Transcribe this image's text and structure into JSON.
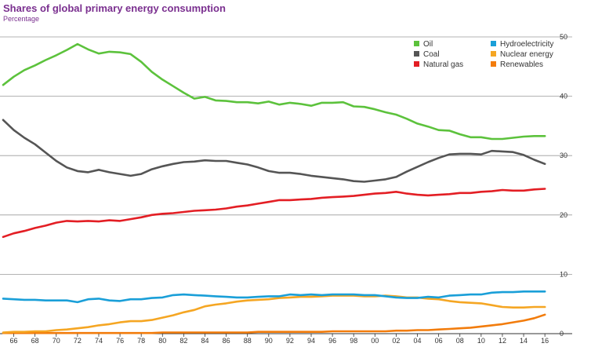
{
  "chart_data": {
    "type": "line",
    "title": "Shares of global primary energy consumption",
    "subtitle": "Percentage",
    "xlabel": "",
    "ylabel": "",
    "x": [
      1965,
      1966,
      1967,
      1968,
      1969,
      1970,
      1971,
      1972,
      1973,
      1974,
      1975,
      1976,
      1977,
      1978,
      1979,
      1980,
      1981,
      1982,
      1983,
      1984,
      1985,
      1986,
      1987,
      1988,
      1989,
      1990,
      1991,
      1992,
      1993,
      1994,
      1995,
      1996,
      1997,
      1998,
      1999,
      2000,
      2001,
      2002,
      2003,
      2004,
      2005,
      2006,
      2007,
      2008,
      2009,
      2010,
      2011,
      2012,
      2013,
      2014,
      2015,
      2016
    ],
    "x_tick_values": [
      1966,
      1968,
      1970,
      1972,
      1974,
      1976,
      1978,
      1980,
      1982,
      1984,
      1986,
      1988,
      1990,
      1992,
      1994,
      1996,
      1998,
      2000,
      2002,
      2004,
      2006,
      2008,
      2010,
      2012,
      2014,
      2016
    ],
    "x_tick_labels": [
      "66",
      "68",
      "70",
      "72",
      "74",
      "76",
      "78",
      "80",
      "82",
      "84",
      "86",
      "88",
      "90",
      "92",
      "94",
      "96",
      "98",
      "00",
      "02",
      "04",
      "06",
      "08",
      "10",
      "12",
      "14",
      "16"
    ],
    "xlim": [
      1965,
      2016.8
    ],
    "ylim": [
      0,
      50
    ],
    "y_ticks": [
      0,
      10,
      20,
      30,
      40,
      50
    ],
    "y_axis_position": "right",
    "grid": "horizontal",
    "legend_position": "top-right",
    "series": [
      {
        "name": "Oil",
        "color": "#5cc23c",
        "values": [
          41.9,
          43.3,
          44.4,
          45.2,
          46.1,
          46.9,
          47.8,
          48.8,
          47.9,
          47.2,
          47.5,
          47.4,
          47.1,
          45.8,
          44.1,
          42.8,
          41.7,
          40.6,
          39.6,
          39.9,
          39.3,
          39.2,
          39.0,
          39.0,
          38.8,
          39.1,
          38.6,
          38.9,
          38.7,
          38.4,
          38.9,
          38.9,
          39.0,
          38.3,
          38.2,
          37.8,
          37.3,
          36.9,
          36.2,
          35.4,
          34.9,
          34.3,
          34.2,
          33.6,
          33.1,
          33.1,
          32.8,
          32.8,
          33.0,
          33.2,
          33.3,
          33.3
        ]
      },
      {
        "name": "Hydroelectricity",
        "color": "#1a9fd8",
        "values": [
          5.9,
          5.8,
          5.7,
          5.7,
          5.6,
          5.6,
          5.6,
          5.3,
          5.8,
          5.9,
          5.6,
          5.5,
          5.8,
          5.8,
          6.0,
          6.1,
          6.5,
          6.6,
          6.5,
          6.4,
          6.3,
          6.2,
          6.1,
          6.1,
          6.2,
          6.3,
          6.3,
          6.6,
          6.5,
          6.6,
          6.5,
          6.6,
          6.6,
          6.6,
          6.5,
          6.5,
          6.3,
          6.1,
          6.0,
          6.0,
          6.2,
          6.1,
          6.4,
          6.5,
          6.6,
          6.6,
          6.9,
          7.0,
          7.0,
          7.1,
          7.1,
          7.1
        ]
      },
      {
        "name": "Coal",
        "color": "#555555",
        "values": [
          36.0,
          34.3,
          33.0,
          31.9,
          30.5,
          29.1,
          28.0,
          27.4,
          27.2,
          27.6,
          27.2,
          26.9,
          26.6,
          26.9,
          27.7,
          28.2,
          28.6,
          28.9,
          29.0,
          29.2,
          29.1,
          29.1,
          28.8,
          28.5,
          28.0,
          27.4,
          27.1,
          27.1,
          26.9,
          26.6,
          26.4,
          26.2,
          26.0,
          25.7,
          25.6,
          25.8,
          26.0,
          26.4,
          27.3,
          28.1,
          28.9,
          29.6,
          30.2,
          30.3,
          30.3,
          30.2,
          30.8,
          30.7,
          30.6,
          30.1,
          29.3,
          28.6
        ]
      },
      {
        "name": "Nuclear energy",
        "color": "#f5a623",
        "values": [
          0.2,
          0.3,
          0.3,
          0.4,
          0.4,
          0.6,
          0.7,
          0.9,
          1.1,
          1.4,
          1.6,
          1.9,
          2.1,
          2.1,
          2.3,
          2.7,
          3.1,
          3.6,
          4.0,
          4.6,
          4.9,
          5.1,
          5.4,
          5.6,
          5.7,
          5.8,
          6.0,
          6.1,
          6.2,
          6.2,
          6.3,
          6.4,
          6.4,
          6.4,
          6.3,
          6.3,
          6.4,
          6.3,
          6.1,
          6.1,
          5.9,
          5.8,
          5.5,
          5.3,
          5.2,
          5.1,
          4.8,
          4.5,
          4.4,
          4.4,
          4.5,
          4.5
        ]
      },
      {
        "name": "Natural gas",
        "color": "#e31e24",
        "values": [
          16.3,
          16.9,
          17.3,
          17.8,
          18.2,
          18.7,
          19.0,
          18.9,
          19.0,
          18.9,
          19.1,
          19.0,
          19.3,
          19.6,
          20.0,
          20.2,
          20.3,
          20.5,
          20.7,
          20.8,
          20.9,
          21.1,
          21.4,
          21.6,
          21.9,
          22.2,
          22.5,
          22.5,
          22.6,
          22.7,
          22.9,
          23.0,
          23.1,
          23.2,
          23.4,
          23.6,
          23.7,
          23.9,
          23.6,
          23.4,
          23.3,
          23.4,
          23.5,
          23.7,
          23.7,
          23.9,
          24.0,
          24.2,
          24.1,
          24.1,
          24.3,
          24.4
        ]
      },
      {
        "name": "Renewables",
        "color": "#f27c0c",
        "values": [
          0.1,
          0.1,
          0.1,
          0.1,
          0.1,
          0.1,
          0.1,
          0.1,
          0.1,
          0.1,
          0.1,
          0.1,
          0.1,
          0.1,
          0.1,
          0.2,
          0.2,
          0.2,
          0.2,
          0.2,
          0.2,
          0.2,
          0.2,
          0.2,
          0.3,
          0.3,
          0.3,
          0.3,
          0.3,
          0.3,
          0.3,
          0.4,
          0.4,
          0.4,
          0.4,
          0.4,
          0.4,
          0.5,
          0.5,
          0.6,
          0.6,
          0.7,
          0.8,
          0.9,
          1.0,
          1.2,
          1.4,
          1.6,
          1.9,
          2.2,
          2.6,
          3.2
        ]
      }
    ],
    "legend": {
      "columns": [
        [
          "Oil",
          "Coal",
          "Natural gas"
        ],
        [
          "Hydroelectricity",
          "Nuclear energy",
          "Renewables"
        ]
      ]
    }
  }
}
